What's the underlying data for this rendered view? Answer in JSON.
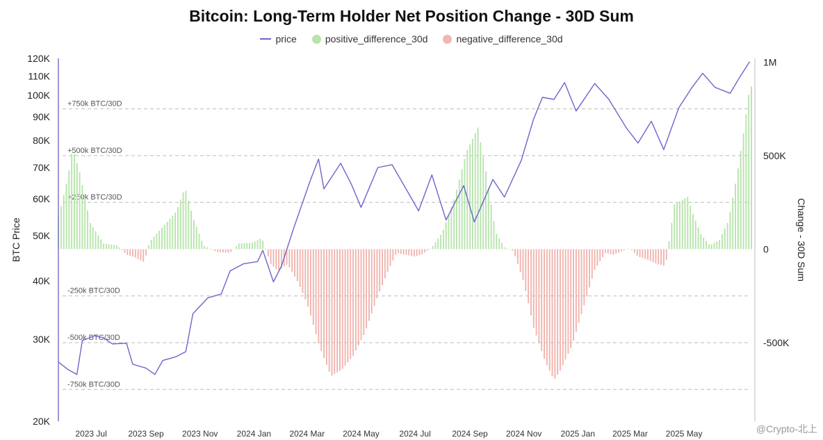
{
  "chart_data": {
    "type": "line+bar",
    "title": "Bitcoin: Long-Term Holder Net Position Change - 30D Sum",
    "ylabel_left": "BTC Price",
    "ylabel_right": "Change - 30D Sum",
    "left_axis": {
      "scale": "log",
      "ylim": [
        20000,
        120000
      ],
      "ticks": [
        20000,
        30000,
        40000,
        50000,
        60000,
        70000,
        80000,
        90000,
        100000,
        110000,
        120000
      ],
      "tick_labels": [
        "20K",
        "30K",
        "40K",
        "50K",
        "60K",
        "70K",
        "80K",
        "90K",
        "100K",
        "110K",
        "120K"
      ]
    },
    "right_axis": {
      "scale": "linear",
      "ylim": [
        -920000,
        1020000
      ],
      "ticks": [
        -500000,
        0,
        500000,
        1000000
      ],
      "tick_labels": [
        "-500K",
        "0",
        "500K",
        "1M"
      ]
    },
    "x_axis": {
      "range": [
        "2023-05-25",
        "2025-07-20"
      ],
      "ticks": [
        "2023-07-01",
        "2023-09-01",
        "2023-11-01",
        "2024-01-01",
        "2024-03-01",
        "2024-05-01",
        "2024-07-01",
        "2024-09-01",
        "2024-11-01",
        "2025-01-01",
        "2025-03-01",
        "2025-05-01"
      ],
      "tick_labels": [
        "2023 Jul",
        "2023 Sep",
        "2023 Nov",
        "2024 Jan",
        "2024 Mar",
        "2024 May",
        "2024 Jul",
        "2024 Sep",
        "2024 Nov",
        "2025 Jan",
        "2025 Mar",
        "2025 May"
      ]
    },
    "reference_lines": [
      {
        "value": 750000,
        "label": "+750k BTC/30D"
      },
      {
        "value": 500000,
        "label": "+500k BTC/30D"
      },
      {
        "value": 250000,
        "label": "+250k BTC/30D"
      },
      {
        "value": -250000,
        "label": "-250k BTC/30D"
      },
      {
        "value": -500000,
        "label": "-500k BTC/30D"
      },
      {
        "value": -750000,
        "label": "-750k BTC/30D"
      }
    ],
    "legend": [
      {
        "name": "price",
        "color": "#6f63c9",
        "kind": "line"
      },
      {
        "name": "positive_difference_30d",
        "color": "#b7e4ac",
        "kind": "dot"
      },
      {
        "name": "negative_difference_30d",
        "color": "#efb8b3",
        "kind": "dot"
      }
    ],
    "colors": {
      "price": "#6f63c9",
      "positive": "#b7e4ac",
      "negative": "#f0b4ae",
      "grid": "#bbbbbb",
      "axis": "#7d74c9"
    },
    "price_series": [
      [
        "2023-05-25",
        26800
      ],
      [
        "2023-06-05",
        25800
      ],
      [
        "2023-06-15",
        25200
      ],
      [
        "2023-06-21",
        29800
      ],
      [
        "2023-07-05",
        30500
      ],
      [
        "2023-07-15",
        30200
      ],
      [
        "2023-07-25",
        29300
      ],
      [
        "2023-08-10",
        29400
      ],
      [
        "2023-08-17",
        26500
      ],
      [
        "2023-09-01",
        26000
      ],
      [
        "2023-09-11",
        25200
      ],
      [
        "2023-09-20",
        27000
      ],
      [
        "2023-10-05",
        27500
      ],
      [
        "2023-10-16",
        28200
      ],
      [
        "2023-10-24",
        34000
      ],
      [
        "2023-11-10",
        36800
      ],
      [
        "2023-11-25",
        37500
      ],
      [
        "2023-12-05",
        42000
      ],
      [
        "2023-12-20",
        43500
      ],
      [
        "2024-01-05",
        44000
      ],
      [
        "2024-01-11",
        46500
      ],
      [
        "2024-01-23",
        39800
      ],
      [
        "2024-02-01",
        43000
      ],
      [
        "2024-02-15",
        52000
      ],
      [
        "2024-03-05",
        66000
      ],
      [
        "2024-03-14",
        73000
      ],
      [
        "2024-03-20",
        63000
      ],
      [
        "2024-04-08",
        71500
      ],
      [
        "2024-04-20",
        64500
      ],
      [
        "2024-05-01",
        57500
      ],
      [
        "2024-05-20",
        70000
      ],
      [
        "2024-06-05",
        71000
      ],
      [
        "2024-06-25",
        61000
      ],
      [
        "2024-07-05",
        56500
      ],
      [
        "2024-07-20",
        67500
      ],
      [
        "2024-08-05",
        54000
      ],
      [
        "2024-08-25",
        64000
      ],
      [
        "2024-09-06",
        53500
      ],
      [
        "2024-09-27",
        66000
      ],
      [
        "2024-10-10",
        60500
      ],
      [
        "2024-10-29",
        72500
      ],
      [
        "2024-11-12",
        89000
      ],
      [
        "2024-11-22",
        99000
      ],
      [
        "2024-12-05",
        98000
      ],
      [
        "2024-12-17",
        106500
      ],
      [
        "2024-12-30",
        92500
      ],
      [
        "2025-01-20",
        106000
      ],
      [
        "2025-02-05",
        98000
      ],
      [
        "2025-02-25",
        85000
      ],
      [
        "2025-03-10",
        79000
      ],
      [
        "2025-03-25",
        88000
      ],
      [
        "2025-04-08",
        76500
      ],
      [
        "2025-04-25",
        94000
      ],
      [
        "2025-05-10",
        104000
      ],
      [
        "2025-05-22",
        111500
      ],
      [
        "2025-06-05",
        104000
      ],
      [
        "2025-06-22",
        101000
      ],
      [
        "2025-07-03",
        109500
      ],
      [
        "2025-07-14",
        118000
      ]
    ],
    "net_position_change_30d": [
      [
        "2023-05-25",
        170000
      ],
      [
        "2023-06-05",
        390000
      ],
      [
        "2023-06-10",
        540000
      ],
      [
        "2023-06-18",
        410000
      ],
      [
        "2023-06-30",
        140000
      ],
      [
        "2023-07-15",
        30000
      ],
      [
        "2023-07-31",
        20000
      ],
      [
        "2023-08-10",
        -30000
      ],
      [
        "2023-08-20",
        -45000
      ],
      [
        "2023-08-30",
        -70000
      ],
      [
        "2023-09-05",
        40000
      ],
      [
        "2023-09-20",
        120000
      ],
      [
        "2023-10-05",
        200000
      ],
      [
        "2023-10-15",
        330000
      ],
      [
        "2023-10-24",
        170000
      ],
      [
        "2023-11-05",
        20000
      ],
      [
        "2023-11-20",
        -15000
      ],
      [
        "2023-12-05",
        -20000
      ],
      [
        "2023-12-15",
        30000
      ],
      [
        "2023-12-30",
        35000
      ],
      [
        "2024-01-10",
        60000
      ],
      [
        "2024-01-20",
        -80000
      ],
      [
        "2024-01-28",
        -115000
      ],
      [
        "2024-02-08",
        -80000
      ],
      [
        "2024-02-20",
        -180000
      ],
      [
        "2024-03-01",
        -290000
      ],
      [
        "2024-03-15",
        -520000
      ],
      [
        "2024-03-28",
        -680000
      ],
      [
        "2024-04-10",
        -640000
      ],
      [
        "2024-04-22",
        -570000
      ],
      [
        "2024-05-05",
        -450000
      ],
      [
        "2024-05-20",
        -250000
      ],
      [
        "2024-06-01",
        -110000
      ],
      [
        "2024-06-10",
        -20000
      ],
      [
        "2024-06-20",
        -30000
      ],
      [
        "2024-07-01",
        -40000
      ],
      [
        "2024-07-10",
        -25000
      ],
      [
        "2024-07-20",
        10000
      ],
      [
        "2024-08-01",
        90000
      ],
      [
        "2024-08-15",
        280000
      ],
      [
        "2024-08-28",
        520000
      ],
      [
        "2024-09-10",
        650000
      ],
      [
        "2024-09-20",
        390000
      ],
      [
        "2024-09-30",
        90000
      ],
      [
        "2024-10-10",
        10000
      ],
      [
        "2024-10-20",
        -10000
      ],
      [
        "2024-11-01",
        -180000
      ],
      [
        "2024-11-12",
        -420000
      ],
      [
        "2024-11-25",
        -600000
      ],
      [
        "2024-12-05",
        -700000
      ],
      [
        "2024-12-12",
        -650000
      ],
      [
        "2024-12-25",
        -520000
      ],
      [
        "2025-01-08",
        -300000
      ],
      [
        "2025-01-20",
        -110000
      ],
      [
        "2025-02-01",
        -20000
      ],
      [
        "2025-02-10",
        -30000
      ],
      [
        "2025-02-20",
        -10000
      ],
      [
        "2025-03-01",
        5000
      ],
      [
        "2025-03-10",
        -40000
      ],
      [
        "2025-03-20",
        -55000
      ],
      [
        "2025-04-01",
        -80000
      ],
      [
        "2025-04-10",
        -90000
      ],
      [
        "2025-04-20",
        240000
      ],
      [
        "2025-05-05",
        280000
      ],
      [
        "2025-05-10",
        200000
      ],
      [
        "2025-05-20",
        80000
      ],
      [
        "2025-05-30",
        20000
      ],
      [
        "2025-06-10",
        50000
      ],
      [
        "2025-06-20",
        150000
      ],
      [
        "2025-06-30",
        400000
      ],
      [
        "2025-07-08",
        650000
      ],
      [
        "2025-07-14",
        860000
      ],
      [
        "2025-07-18",
        880000
      ]
    ]
  },
  "watermark": "@Crypto-北上"
}
